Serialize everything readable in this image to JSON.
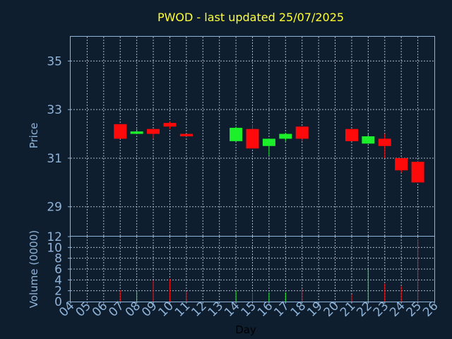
{
  "chart_data": {
    "title": "PWOD - last updated 25/07/2025",
    "xlabel": "Day",
    "colors": {
      "background": "#0f1e2e",
      "axis": "#8fb4d9",
      "grid": "#a8b8c8",
      "title": "#ffff33",
      "label": "#8fb4d9",
      "up": "#1cf02a",
      "down": "#ff0a0a"
    },
    "x_ticks": [
      "04",
      "05",
      "06",
      "07",
      "08",
      "09",
      "10",
      "11",
      "12",
      "13",
      "14",
      "15",
      "16",
      "17",
      "18",
      "19",
      "20",
      "21",
      "22",
      "23",
      "24",
      "25",
      "26"
    ],
    "x_range": [
      4,
      26
    ],
    "price_panel": {
      "type": "candlestick",
      "ylabel": "Price",
      "ylim": [
        27.8,
        36
      ],
      "y_ticks": [
        29,
        31,
        33,
        35
      ],
      "grid": true,
      "candles": [
        {
          "day": 7,
          "open": 32.4,
          "close": 31.8,
          "high": 32.4,
          "low": 31.8
        },
        {
          "day": 8,
          "open": 32.0,
          "close": 32.1,
          "high": 32.2,
          "low": 32.0
        },
        {
          "day": 9,
          "open": 32.2,
          "close": 32.0,
          "high": 32.2,
          "low": 31.8
        },
        {
          "day": 10,
          "open": 32.45,
          "close": 32.3,
          "high": 32.5,
          "low": 32.2
        },
        {
          "day": 11,
          "open": 32.0,
          "close": 31.9,
          "high": 32.0,
          "low": 31.9
        },
        {
          "day": 14,
          "open": 31.7,
          "close": 32.25,
          "high": 32.3,
          "low": 31.7
        },
        {
          "day": 15,
          "open": 32.2,
          "close": 31.4,
          "high": 32.4,
          "low": 31.4
        },
        {
          "day": 16,
          "open": 31.5,
          "close": 31.8,
          "high": 31.8,
          "low": 31.1
        },
        {
          "day": 17,
          "open": 31.8,
          "close": 32.0,
          "high": 32.05,
          "low": 31.7
        },
        {
          "day": 18,
          "open": 32.3,
          "close": 31.8,
          "high": 32.3,
          "low": 31.7
        },
        {
          "day": 21,
          "open": 32.2,
          "close": 31.7,
          "high": 32.2,
          "low": 31.7
        },
        {
          "day": 22,
          "open": 31.6,
          "close": 31.9,
          "high": 32.0,
          "low": 31.6
        },
        {
          "day": 23,
          "open": 31.8,
          "close": 31.5,
          "high": 32.0,
          "low": 31.0
        },
        {
          "day": 24,
          "open": 31.0,
          "close": 30.5,
          "high": 31.0,
          "low": 30.4
        },
        {
          "day": 25,
          "open": 30.85,
          "close": 30.0,
          "high": 30.9,
          "low": 30.0
        }
      ]
    },
    "volume_panel": {
      "type": "bar",
      "ylabel": "Volume (0000)",
      "ylim": [
        0,
        12
      ],
      "y_ticks": [
        0,
        2,
        4,
        6,
        8,
        10,
        12
      ],
      "grid": true,
      "bars": [
        {
          "day": 7,
          "value": 2.1,
          "direction": "down"
        },
        {
          "day": 8,
          "value": 2.1,
          "direction": "up"
        },
        {
          "day": 9,
          "value": 3.9,
          "direction": "down"
        },
        {
          "day": 10,
          "value": 4.2,
          "direction": "down"
        },
        {
          "day": 11,
          "value": 1.8,
          "direction": "down"
        },
        {
          "day": 14,
          "value": 2.0,
          "direction": "up"
        },
        {
          "day": 15,
          "value": 1.7,
          "direction": "down"
        },
        {
          "day": 16,
          "value": 1.7,
          "direction": "up"
        },
        {
          "day": 17,
          "value": 1.7,
          "direction": "up"
        },
        {
          "day": 18,
          "value": 2.4,
          "direction": "down"
        },
        {
          "day": 21,
          "value": 1.3,
          "direction": "down"
        },
        {
          "day": 22,
          "value": 6.0,
          "direction": "up"
        },
        {
          "day": 23,
          "value": 3.3,
          "direction": "down"
        },
        {
          "day": 24,
          "value": 2.8,
          "direction": "down"
        },
        {
          "day": 25,
          "value": 11.5,
          "direction": "down"
        }
      ]
    }
  }
}
